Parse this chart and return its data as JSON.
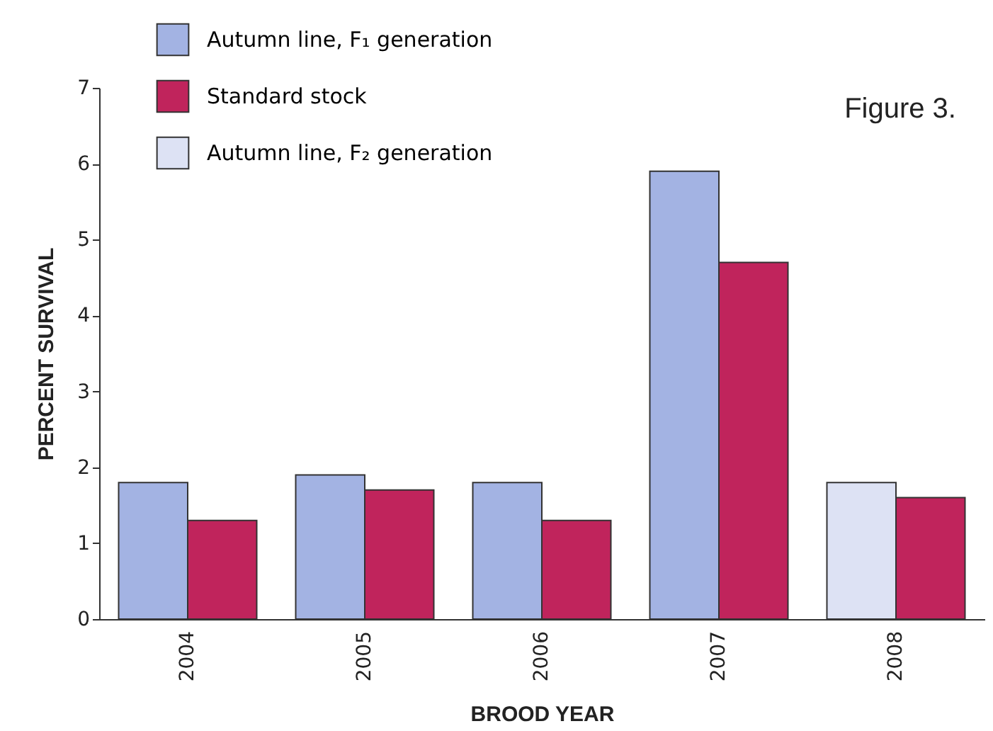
{
  "chart_data": {
    "type": "bar",
    "xlabel": "BROOD YEAR",
    "ylabel": "PERCENT SURVIVAL",
    "categories": [
      "2004",
      "2005",
      "2006",
      "2007",
      "2008"
    ],
    "series": [
      {
        "name": "Autumn line, F₁ generation",
        "color": "#a3b3e3",
        "values": [
          1.8,
          1.9,
          1.8,
          5.9,
          null
        ]
      },
      {
        "name": "Standard stock",
        "color": "#c0245c",
        "values": [
          1.3,
          1.7,
          1.3,
          4.7,
          1.6
        ]
      },
      {
        "name": "Autumn line, F₂ generation",
        "color": "#dde2f4",
        "values": [
          null,
          null,
          null,
          null,
          1.8
        ]
      }
    ],
    "ylim": [
      0,
      7
    ],
    "yticks": [
      0,
      1,
      2,
      3,
      4,
      5,
      6,
      7
    ],
    "grid": false,
    "legend": "top left",
    "annotations": [
      "Figure 3."
    ]
  }
}
